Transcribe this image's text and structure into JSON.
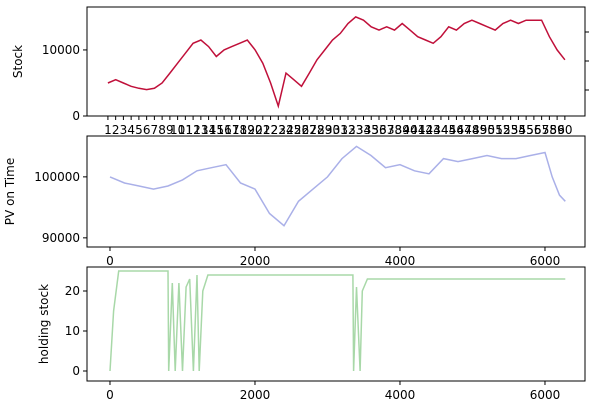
{
  "chart_data": [
    {
      "type": "line",
      "ylabel": "Stock",
      "color": "#c0103a",
      "x": [
        1,
        2,
        3,
        4,
        5,
        6,
        7,
        8,
        9,
        10,
        11,
        12,
        13,
        14,
        15,
        16,
        17,
        18,
        19,
        20,
        21,
        22,
        23,
        24,
        25,
        26,
        27,
        28,
        29,
        30,
        31,
        32,
        33,
        34,
        35,
        36,
        37,
        38,
        39,
        40,
        41,
        42,
        43,
        44,
        45,
        46,
        47,
        48,
        49,
        50,
        51,
        52,
        53,
        54,
        55,
        56,
        57,
        58,
        59,
        60
      ],
      "values": [
        5000,
        5500,
        5000,
        4500,
        4200,
        4000,
        4200,
        5000,
        6500,
        8000,
        9500,
        11000,
        11500,
        10500,
        9000,
        10000,
        10500,
        11000,
        11500,
        10000,
        8000,
        5000,
        1500,
        6500,
        5500,
        4500,
        6500,
        8500,
        10000,
        11500,
        12500,
        14000,
        15000,
        14500,
        13500,
        13000,
        13500,
        13000,
        14000,
        13000,
        12000,
        11500,
        11000,
        12000,
        13500,
        13000,
        14000,
        14500,
        14000,
        13500,
        13000,
        14000,
        14500,
        14000,
        14500,
        14500,
        14500,
        12000,
        10000,
        8500
      ],
      "xlim": [
        -1.7,
        62.6
      ],
      "xticks": [
        1,
        2,
        3,
        4,
        5,
        6,
        7,
        8,
        9,
        10,
        11,
        12,
        13,
        14,
        15,
        16,
        17,
        18,
        19,
        20,
        21,
        22,
        23,
        24,
        25,
        26,
        27,
        28,
        29,
        30,
        31,
        32,
        33,
        34,
        35,
        36,
        37,
        38,
        39,
        40,
        41,
        42,
        43,
        44,
        45,
        46,
        47,
        48,
        49,
        50,
        51,
        52,
        53,
        54,
        55,
        56,
        57,
        58,
        59,
        60
      ],
      "ylim": [
        0,
        16500
      ],
      "yticks": [
        0,
        10000
      ]
    },
    {
      "type": "line",
      "ylabel": "PV on Time",
      "color": "#aab0e8",
      "x": [
        0,
        200,
        400,
        600,
        800,
        1000,
        1200,
        1400,
        1600,
        1800,
        2000,
        2200,
        2400,
        2600,
        2800,
        3000,
        3200,
        3400,
        3600,
        3800,
        4000,
        4200,
        4400,
        4600,
        4800,
        5000,
        5200,
        5400,
        5600,
        5800,
        6000,
        6100,
        6200,
        6280
      ],
      "values": [
        100000,
        99000,
        98500,
        98000,
        98500,
        99500,
        101000,
        101500,
        102000,
        99000,
        98000,
        94000,
        92000,
        96000,
        98000,
        100000,
        103000,
        105000,
        103500,
        101500,
        102000,
        101000,
        100500,
        103000,
        102500,
        103000,
        103500,
        103000,
        103000,
        103500,
        104000,
        100000,
        97000,
        96000
      ],
      "xlim": [
        -317,
        6552
      ],
      "xticks": [
        0,
        2000,
        4000,
        6000
      ],
      "ylim": [
        88500,
        106700
      ],
      "yticks": [
        90000,
        100000
      ]
    },
    {
      "type": "line",
      "ylabel": "holding stock",
      "color": "#a8d8a8",
      "x": [
        0,
        50,
        120,
        800,
        810,
        860,
        900,
        950,
        1000,
        1050,
        1100,
        1150,
        1200,
        1230,
        1280,
        1350,
        3350,
        3360,
        3400,
        3450,
        3480,
        3550,
        6280
      ],
      "values": [
        0,
        15,
        25,
        25,
        0,
        22,
        0,
        22,
        0,
        21,
        23,
        0,
        24,
        0,
        20,
        24,
        24,
        0,
        21,
        0,
        20,
        23,
        23
      ],
      "xlim": [
        -317,
        6552
      ],
      "xticks": [
        0,
        2000,
        4000,
        6000
      ],
      "ylim": [
        -2.5,
        26
      ],
      "yticks": [
        0,
        10,
        20
      ]
    }
  ]
}
